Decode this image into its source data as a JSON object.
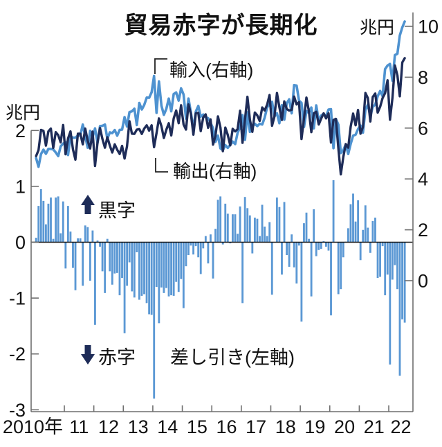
{
  "title": "貿易赤字が長期化",
  "left_axis_unit": "兆円",
  "right_axis_unit": "兆円",
  "annotations": {
    "surplus": "黒字",
    "deficit": "赤字"
  },
  "series_labels": {
    "imports": "輸入(右軸)",
    "exports": "輸出(右軸)",
    "balance": "差し引き(左軸)"
  },
  "colors": {
    "imports_line": "#4e92d0",
    "exports_line": "#1e2c58",
    "balance_bar": "#5b98d4",
    "arrow": "#1e2c58",
    "axis": "#6e6e6e",
    "zero_line": "#111111",
    "text": "#111111"
  },
  "chart_data": {
    "type": "bar+line",
    "title": "貿易赤字が長期化",
    "x_frequency": "monthly",
    "x_start": "2010-01",
    "x_end": "2022-07",
    "x_tick_labels": [
      "2010年",
      "11",
      "12",
      "13",
      "14",
      "15",
      "16",
      "17",
      "18",
      "19",
      "20",
      "21",
      "22"
    ],
    "left_axis": {
      "label": "兆円",
      "ticks": [
        2,
        1,
        0,
        -1,
        -2,
        -3
      ],
      "range": [
        -3,
        2.1
      ],
      "applies_to": "差し引き(左軸)"
    },
    "right_axis": {
      "label": "兆円",
      "ticks": [
        10,
        8,
        6,
        4,
        2,
        0
      ],
      "range": [
        0,
        10.6
      ],
      "applies_to": "輸入・輸出(右軸)"
    },
    "series": [
      {
        "name": "輸入(右軸)",
        "type": "line",
        "axis": "right",
        "values": [
          4.82,
          4.48,
          4.98,
          5.15,
          4.99,
          5.18,
          5.18,
          5.16,
          5.04,
          4.9,
          5.28,
          5.39,
          5.44,
          4.94,
          5.68,
          5.62,
          5.62,
          5.71,
          5.71,
          6.14,
          5.68,
          5.23,
          5.89,
          5.65,
          5.99,
          5.41,
          6.08,
          6.09,
          6.14,
          5.58,
          5.83,
          5.8,
          5.92,
          5.7,
          5.93,
          5.94,
          6.43,
          6.06,
          6.63,
          6.66,
          6.76,
          6.12,
          6.99,
          6.73,
          6.91,
          7.2,
          7.19,
          7.41,
          8.05,
          6.6,
          7.83,
          6.88,
          6.52,
          6.76,
          7.16,
          6.66,
          7.34,
          7.4,
          7.08,
          7.56,
          7.32,
          6.37,
          7.16,
          6.61,
          5.96,
          6.65,
          6.87,
          6.45,
          6.53,
          6.43,
          6.39,
          6.2,
          6.0,
          5.46,
          5.7,
          5.2,
          5.13,
          5.33,
          5.22,
          5.34,
          5.47,
          5.37,
          5.81,
          6.04,
          6.51,
          5.54,
          6.62,
          5.85,
          6.05,
          6.17,
          6.08,
          6.17,
          6.14,
          6.41,
          6.81,
          6.94,
          7.03,
          6.46,
          6.58,
          6.19,
          6.9,
          6.33,
          6.98,
          7.13,
          6.58,
          7.69,
          7.67,
          7.08,
          6.99,
          6.04,
          6.67,
          6.6,
          6.81,
          5.99,
          6.89,
          6.28,
          6.49,
          6.56,
          6.46,
          6.73,
          6.74,
          5.21,
          6.36,
          6.13,
          5.02,
          5.13,
          5.36,
          4.98,
          5.38,
          5.7,
          5.74,
          5.96,
          6.1,
          5.82,
          6.72,
          6.92,
          6.45,
          6.84,
          6.92,
          7.25,
          7.46,
          7.25,
          8.32,
          8.46,
          8.52,
          7.86,
          8.87,
          8.92,
          9.64,
          9.96,
          10.19
        ]
      },
      {
        "name": "輸出(右軸)",
        "type": "line",
        "axis": "right",
        "values": [
          4.9,
          5.13,
          5.93,
          5.89,
          5.31,
          5.87,
          5.98,
          5.22,
          5.84,
          5.72,
          5.44,
          6.12,
          4.97,
          5.59,
          5.87,
          5.16,
          4.76,
          5.78,
          5.78,
          5.36,
          5.98,
          5.5,
          5.2,
          5.86,
          4.51,
          5.44,
          6.0,
          5.57,
          5.23,
          5.64,
          5.31,
          5.04,
          5.36,
          5.15,
          4.98,
          5.3,
          4.8,
          5.28,
          6.27,
          5.78,
          5.77,
          5.94,
          5.96,
          5.77,
          5.98,
          6.11,
          5.9,
          6.11,
          5.25,
          5.8,
          6.38,
          6.07,
          5.61,
          5.94,
          6.19,
          5.71,
          6.38,
          6.69,
          6.19,
          6.9,
          6.14,
          5.94,
          6.93,
          6.55,
          5.74,
          6.58,
          6.6,
          5.88,
          6.42,
          6.54,
          6.01,
          6.34,
          5.35,
          5.7,
          6.46,
          6.02,
          5.09,
          6.02,
          5.73,
          5.32,
          5.97,
          5.87,
          5.96,
          6.68,
          5.42,
          6.35,
          7.23,
          6.33,
          5.85,
          6.61,
          6.5,
          6.28,
          6.81,
          6.69,
          6.92,
          7.3,
          6.09,
          6.46,
          7.38,
          6.82,
          6.32,
          7.05,
          6.75,
          6.69,
          6.72,
          7.24,
          6.93,
          7.02,
          5.57,
          6.38,
          7.2,
          6.66,
          5.84,
          6.58,
          6.64,
          6.14,
          6.37,
          6.58,
          6.38,
          6.58,
          5.43,
          6.32,
          6.36,
          5.2,
          4.18,
          4.86,
          5.37,
          5.23,
          6.06,
          6.57,
          6.11,
          6.71,
          5.78,
          6.04,
          7.38,
          7.18,
          6.26,
          7.22,
          7.36,
          6.61,
          6.84,
          7.18,
          7.37,
          7.88,
          6.33,
          7.19,
          8.46,
          8.08,
          7.25,
          8.58,
          8.75
        ]
      },
      {
        "name": "差し引き(左軸)",
        "type": "bar",
        "axis": "left",
        "values": [
          0.08,
          0.65,
          0.95,
          0.74,
          0.32,
          0.69,
          0.8,
          0.06,
          0.8,
          0.82,
          0.16,
          0.73,
          -0.47,
          0.65,
          0.19,
          -0.46,
          -0.86,
          0.07,
          0.07,
          -0.78,
          0.3,
          0.27,
          -0.69,
          0.21,
          -1.48,
          0.03,
          -0.08,
          -0.52,
          -0.91,
          0.06,
          -0.52,
          -0.76,
          -0.56,
          -0.55,
          -0.95,
          -0.64,
          -1.63,
          -0.78,
          -0.36,
          -0.88,
          -0.99,
          -0.18,
          -1.03,
          -0.96,
          -0.93,
          -1.09,
          -1.29,
          -1.3,
          -2.8,
          -0.8,
          -1.45,
          -0.81,
          -0.91,
          -0.82,
          -0.97,
          -0.95,
          -0.96,
          -0.71,
          -0.89,
          -0.66,
          -1.18,
          -0.43,
          -0.23,
          -0.06,
          -0.22,
          -0.07,
          -0.27,
          -0.57,
          -0.11,
          0.11,
          -0.38,
          0.14,
          -0.65,
          0.24,
          0.76,
          0.82,
          -0.04,
          0.69,
          0.51,
          -0.02,
          0.5,
          0.5,
          0.15,
          0.64,
          -1.09,
          0.81,
          0.61,
          0.48,
          -0.2,
          0.44,
          0.42,
          0.11,
          0.67,
          0.28,
          0.11,
          0.36,
          -0.94,
          0.0,
          0.8,
          0.63,
          -0.58,
          0.72,
          -0.23,
          -0.44,
          0.14,
          -0.45,
          -0.74,
          -0.06,
          -1.42,
          0.34,
          0.53,
          0.06,
          -0.97,
          0.59,
          -0.25,
          -0.14,
          -0.12,
          0.02,
          -0.08,
          -0.15,
          -1.31,
          1.11,
          0.0,
          -0.93,
          -0.84,
          -0.27,
          0.01,
          0.25,
          0.68,
          0.87,
          0.37,
          0.75,
          -0.32,
          0.22,
          0.66,
          0.26,
          -0.19,
          0.38,
          0.44,
          -0.64,
          -0.62,
          -0.07,
          -0.95,
          -0.58,
          -2.19,
          -0.67,
          -0.41,
          -0.84,
          -2.39,
          -1.38,
          -1.44
        ]
      }
    ]
  }
}
